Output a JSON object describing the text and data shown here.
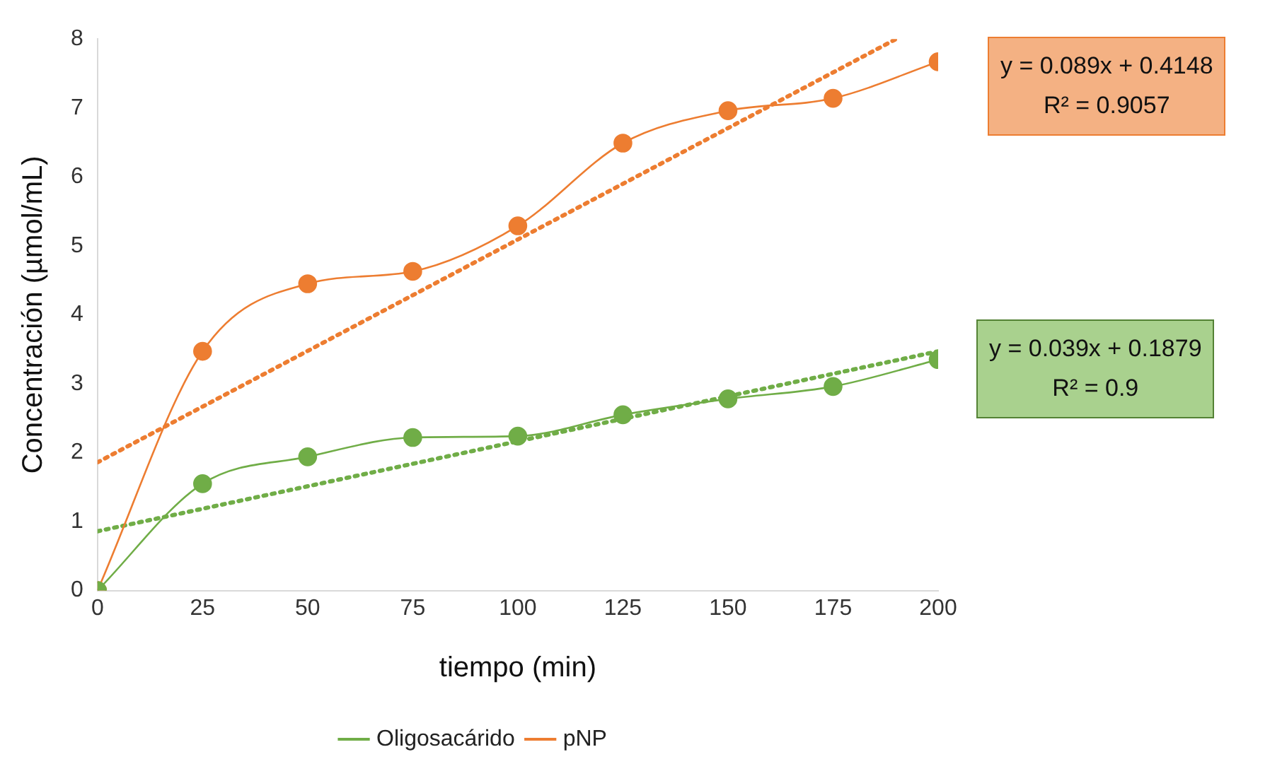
{
  "chart_data": {
    "type": "line",
    "xlabel": "tiempo (min)",
    "ylabel": "Concentración (µmol/mL)",
    "xlim": [
      0,
      200
    ],
    "xticks": [
      0,
      25,
      50,
      75,
      100,
      125,
      150,
      175,
      200
    ],
    "ylim": [
      0,
      8
    ],
    "yticks": [
      0,
      1,
      2,
      3,
      4,
      5,
      6,
      7,
      8
    ],
    "grid": false,
    "legend": "bottom",
    "marker": "circle",
    "series": [
      {
        "name": "Oligosacárido",
        "color": "#70ad47",
        "x": [
          0,
          25,
          50,
          75,
          100,
          125,
          150,
          175,
          200
        ],
        "values": [
          0,
          1.55,
          1.94,
          2.22,
          2.24,
          2.55,
          2.78,
          2.96,
          3.35
        ]
      },
      {
        "name": "pNP",
        "color": "#ed7d31",
        "x": [
          0,
          25,
          50,
          75,
          100,
          125,
          150,
          175,
          200
        ],
        "values": [
          0,
          3.47,
          4.45,
          4.63,
          5.29,
          6.49,
          6.96,
          7.14,
          7.67
        ]
      },
      {
        "type": "line",
        "color": "#70ad47",
        "line_style": "dotted",
        "marker": "none",
        "x": [
          0,
          200
        ],
        "values": [
          0.86,
          3.47
        ]
      },
      {
        "type": "line",
        "color": "#ed7d31",
        "line_style": "dotted",
        "marker": "none",
        "x": [
          0,
          190
        ],
        "values": [
          1.86,
          8
        ]
      }
    ],
    "annotations": [
      "y = 0.089x + 0.4148\nR² = 0.9057",
      "y = 0.039x + 0.1879\nR² = 0.9"
    ]
  }
}
